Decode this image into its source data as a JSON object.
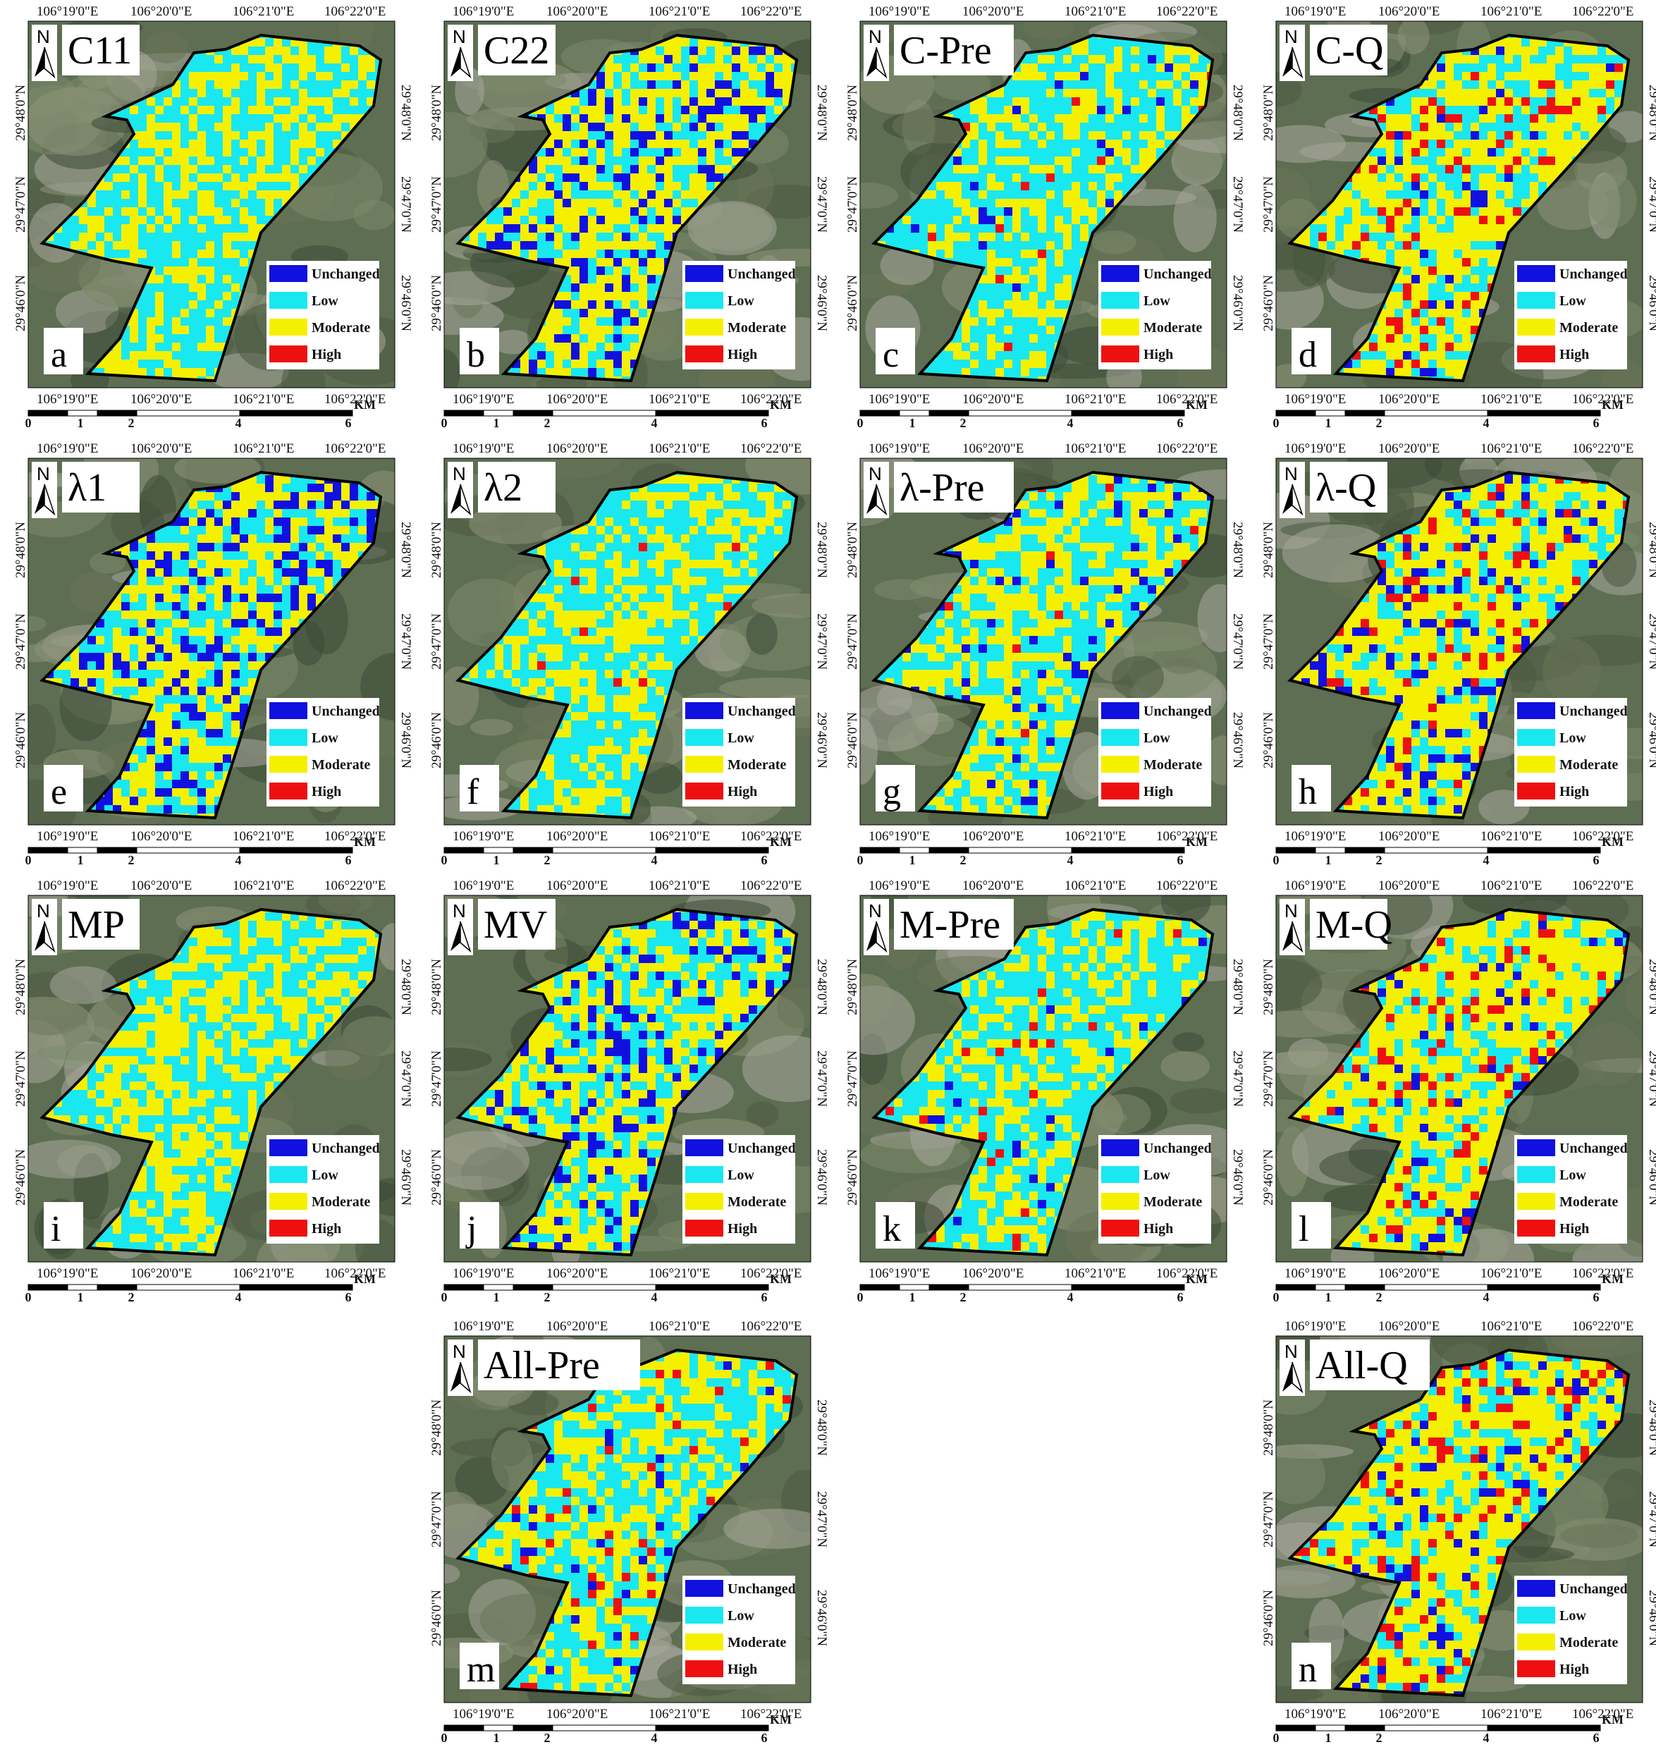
{
  "coords": {
    "lon": [
      "106°19'0\"E",
      "106°20'0\"E",
      "106°21'0\"E",
      "106°22'0\"E"
    ],
    "lat": [
      "29°48'0\"N",
      "29°47'0\"N",
      "29°46'0\"N"
    ]
  },
  "north_label": "N",
  "legend": [
    {
      "label": "Unchanged",
      "color": "#1010e0"
    },
    {
      "label": "Low",
      "color": "#19e8f0"
    },
    {
      "label": "Moderate",
      "color": "#f5f000"
    },
    {
      "label": "High",
      "color": "#ee1010"
    }
  ],
  "scale": {
    "unit": "KM",
    "ticks": [
      "0",
      "1",
      "2",
      "4",
      "6"
    ]
  },
  "colors": {
    "background": "#5d6e52",
    "boundary": "#000000"
  },
  "panels": [
    {
      "id": "a",
      "title": "C11",
      "label": "a"
    },
    {
      "id": "b",
      "title": "C22",
      "label": "b"
    },
    {
      "id": "c",
      "title": "C-Pre",
      "label": "c"
    },
    {
      "id": "d",
      "title": "C-Q",
      "label": "d"
    },
    {
      "id": "e",
      "title": "λ1",
      "label": "e"
    },
    {
      "id": "f",
      "title": "λ2",
      "label": "f"
    },
    {
      "id": "g",
      "title": "λ-Pre",
      "label": "g"
    },
    {
      "id": "h",
      "title": "λ-Q",
      "label": "h"
    },
    {
      "id": "i",
      "title": "MP",
      "label": "i"
    },
    {
      "id": "j",
      "title": "MV",
      "label": "j"
    },
    {
      "id": "k",
      "title": "M-Pre",
      "label": "k"
    },
    {
      "id": "l",
      "title": "M-Q",
      "label": "l"
    },
    {
      "id": "m",
      "title": "All-Pre",
      "label": "m"
    },
    {
      "id": "n",
      "title": "All-Q",
      "label": "n"
    }
  ]
}
